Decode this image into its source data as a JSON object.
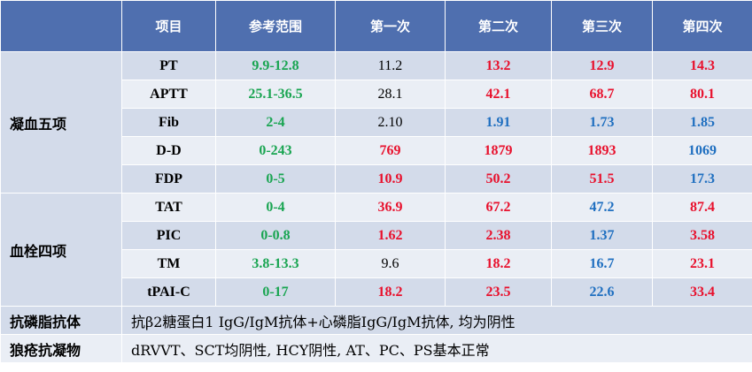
{
  "colors": {
    "header_bg": "#4f6faf",
    "header_text": "#ffffff",
    "row_dark": "#d3dbea",
    "row_light": "#eaeef5",
    "normal": "#000000",
    "high": "#e8112d",
    "low": "#1f6fc0",
    "reference": "#1aa552"
  },
  "header": [
    "",
    "项目",
    "参考范围",
    "第一次",
    "第二次",
    "第三次",
    "第四次"
  ],
  "groups": [
    {
      "name": "凝血五项",
      "rows": [
        {
          "item": "PT",
          "ref": "9.9-12.8",
          "values": [
            {
              "v": "11.2",
              "s": "normal"
            },
            {
              "v": "13.2",
              "s": "high"
            },
            {
              "v": "12.9",
              "s": "high"
            },
            {
              "v": "14.3",
              "s": "high"
            }
          ]
        },
        {
          "item": "APTT",
          "ref": "25.1-36.5",
          "values": [
            {
              "v": "28.1",
              "s": "normal"
            },
            {
              "v": "42.1",
              "s": "high"
            },
            {
              "v": "68.7",
              "s": "high"
            },
            {
              "v": "80.1",
              "s": "high"
            }
          ]
        },
        {
          "item": "Fib",
          "ref": "2-4",
          "values": [
            {
              "v": "2.10",
              "s": "normal"
            },
            {
              "v": "1.91",
              "s": "low"
            },
            {
              "v": "1.73",
              "s": "low"
            },
            {
              "v": "1.85",
              "s": "low"
            }
          ]
        },
        {
          "item": "D-D",
          "ref": "0-243",
          "values": [
            {
              "v": "769",
              "s": "high"
            },
            {
              "v": "1879",
              "s": "high"
            },
            {
              "v": "1893",
              "s": "high"
            },
            {
              "v": "1069",
              "s": "low"
            }
          ]
        },
        {
          "item": "FDP",
          "ref": "0-5",
          "values": [
            {
              "v": "10.9",
              "s": "high"
            },
            {
              "v": "50.2",
              "s": "high"
            },
            {
              "v": "51.5",
              "s": "high"
            },
            {
              "v": "17.3",
              "s": "low"
            }
          ]
        }
      ]
    },
    {
      "name": "血栓四项",
      "rows": [
        {
          "item": "TAT",
          "ref": "0-4",
          "values": [
            {
              "v": "36.9",
              "s": "high"
            },
            {
              "v": "67.2",
              "s": "high"
            },
            {
              "v": "47.2",
              "s": "low"
            },
            {
              "v": "87.4",
              "s": "high"
            }
          ]
        },
        {
          "item": "PIC",
          "ref": "0-0.8",
          "values": [
            {
              "v": "1.62",
              "s": "high"
            },
            {
              "v": "2.38",
              "s": "high"
            },
            {
              "v": "1.37",
              "s": "low"
            },
            {
              "v": "3.58",
              "s": "high"
            }
          ]
        },
        {
          "item": "TM",
          "ref": "3.8-13.3",
          "values": [
            {
              "v": "9.6",
              "s": "normal"
            },
            {
              "v": "18.2",
              "s": "high"
            },
            {
              "v": "16.7",
              "s": "low"
            },
            {
              "v": "23.1",
              "s": "high"
            }
          ]
        },
        {
          "item": "tPAI-C",
          "ref": "0-17",
          "values": [
            {
              "v": "18.2",
              "s": "high"
            },
            {
              "v": "23.5",
              "s": "high"
            },
            {
              "v": "22.6",
              "s": "low"
            },
            {
              "v": "33.4",
              "s": "high"
            }
          ]
        }
      ]
    }
  ],
  "footer": [
    {
      "label": "抗磷脂抗体",
      "text": "抗β2糖蛋白1 IgG/IgM抗体+心磷脂IgG/IgM抗体, 均为阴性"
    },
    {
      "label": "狼疮抗凝物",
      "text": "dRVVT、SCT均阴性, HCY阴性, AT、PC、PS基本正常"
    }
  ]
}
